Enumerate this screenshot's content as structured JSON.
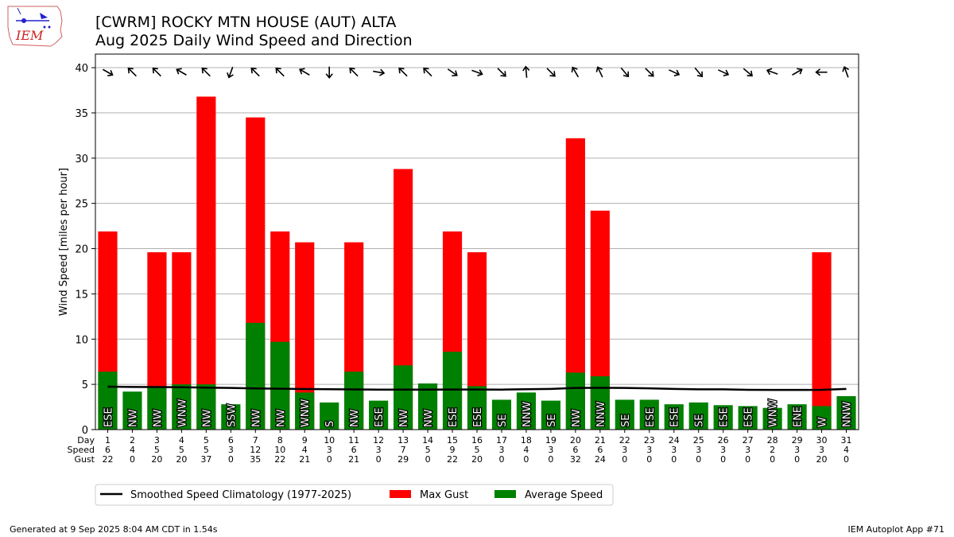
{
  "header": {
    "title_line1": "[CWRM] ROCKY MTN HOUSE (AUT)  ALTA",
    "title_line2": "Aug 2025 Daily Wind Speed and Direction",
    "logo_text": "IEM"
  },
  "footer": {
    "generated": "Generated at 9 Sep 2025 8:04 AM CDT in 1.54s",
    "app": "IEM Autoplot App #71"
  },
  "colors": {
    "gust": "#ff0000",
    "avg": "#008000",
    "climatology": "#000000",
    "grid": "#b0b0b0"
  },
  "chart_data": {
    "type": "bar",
    "ylabel": "Wind Speed [miles per hour]",
    "ylim": [
      0,
      41.5
    ],
    "yticks": [
      0,
      5,
      10,
      15,
      20,
      25,
      30,
      35,
      40
    ],
    "grid": true,
    "legend_placement": "below",
    "row_labels": [
      "Day",
      "Speed",
      "Gust"
    ],
    "days": [
      1,
      2,
      3,
      4,
      5,
      6,
      7,
      8,
      9,
      10,
      11,
      12,
      13,
      14,
      15,
      16,
      17,
      18,
      19,
      20,
      21,
      22,
      23,
      24,
      25,
      26,
      27,
      28,
      29,
      30,
      31
    ],
    "speed_label": [
      6,
      4,
      5,
      5,
      5,
      3,
      12,
      10,
      4,
      3,
      6,
      3,
      7,
      5,
      9,
      5,
      3,
      4,
      3,
      6,
      6,
      3,
      3,
      3,
      3,
      3,
      3,
      2,
      3,
      3,
      4
    ],
    "gust_label": [
      22,
      0,
      20,
      20,
      37,
      0,
      35,
      22,
      21,
      0,
      21,
      0,
      29,
      0,
      22,
      20,
      0,
      0,
      0,
      32,
      24,
      0,
      0,
      0,
      0,
      0,
      0,
      0,
      0,
      20,
      0
    ],
    "avg_speed": [
      6.4,
      4.2,
      4.8,
      5.0,
      5.0,
      2.8,
      11.8,
      9.7,
      4.1,
      3.0,
      6.4,
      3.2,
      7.1,
      5.1,
      8.6,
      4.8,
      3.3,
      4.1,
      3.2,
      6.3,
      5.9,
      3.3,
      3.3,
      2.8,
      3.0,
      2.7,
      2.6,
      2.4,
      2.8,
      2.6,
      3.7
    ],
    "max_gust": [
      21.9,
      null,
      19.6,
      19.6,
      36.8,
      null,
      34.5,
      21.9,
      20.7,
      null,
      20.7,
      null,
      28.8,
      null,
      21.9,
      19.6,
      null,
      null,
      null,
      32.2,
      24.2,
      null,
      null,
      null,
      null,
      null,
      null,
      null,
      null,
      19.6,
      null
    ],
    "direction": [
      "ESE",
      "NW",
      "NW",
      "WNW",
      "NW",
      "SSW",
      "NW",
      "NW",
      "WNW",
      "S",
      "NW",
      "ESE",
      "NW",
      "NW",
      "ESE",
      "ESE",
      "SE",
      "NNW",
      "SE",
      "NW",
      "NNW",
      "SE",
      "ESE",
      "ESE",
      "SE",
      "ESE",
      "ESE",
      "WNW",
      "ENE",
      "W",
      "NNW"
    ],
    "arrow_deg": [
      120,
      315,
      315,
      300,
      315,
      200,
      315,
      315,
      300,
      180,
      315,
      100,
      315,
      315,
      125,
      110,
      135,
      355,
      135,
      330,
      335,
      140,
      135,
      115,
      140,
      115,
      130,
      290,
      60,
      270,
      340
    ],
    "climatology": [
      4.75,
      4.72,
      4.7,
      4.68,
      4.64,
      4.6,
      4.55,
      4.52,
      4.48,
      4.46,
      4.44,
      4.42,
      4.42,
      4.42,
      4.43,
      4.43,
      4.42,
      4.46,
      4.5,
      4.6,
      4.62,
      4.6,
      4.56,
      4.5,
      4.45,
      4.45,
      4.4,
      4.38,
      4.38,
      4.4,
      4.5
    ],
    "series": [
      {
        "name": "Smoothed Speed Climatology (1977-2025)"
      },
      {
        "name": "Max Gust"
      },
      {
        "name": "Average Speed"
      }
    ]
  }
}
